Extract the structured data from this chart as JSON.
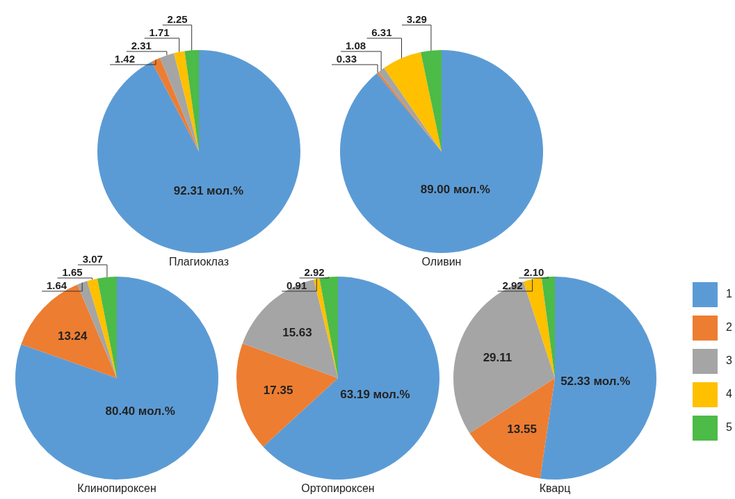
{
  "chart_data": [
    {
      "type": "pie",
      "title": "Плагиоклаз",
      "categories": [
        null,
        null,
        null,
        null,
        null
      ],
      "values": [
        92.31,
        1.42,
        2.31,
        1.71,
        2.25
      ],
      "colors": [
        "#5b9bd5",
        "#ed7d31",
        "#a5a5a5",
        "#ffc000",
        "#4cbb47"
      ],
      "value_labels": [
        "92.31 мол.%",
        "1.42",
        "2.31",
        "1.71",
        "2.25"
      ]
    },
    {
      "type": "pie",
      "title": "Оливин",
      "categories": [
        null,
        null,
        null,
        null,
        null
      ],
      "values": [
        89.0,
        0.33,
        1.08,
        6.31,
        3.29
      ],
      "colors": [
        "#5b9bd5",
        "#ed7d31",
        "#a5a5a5",
        "#ffc000",
        "#4cbb47"
      ],
      "value_labels": [
        "89.00 мол.%",
        "0.33",
        "1.08",
        "6.31",
        "3.29"
      ]
    },
    {
      "type": "pie",
      "title": "Клинопироксен",
      "categories": [
        null,
        null,
        null,
        null,
        null
      ],
      "values": [
        80.4,
        13.24,
        1.64,
        1.65,
        3.07
      ],
      "colors": [
        "#5b9bd5",
        "#ed7d31",
        "#a5a5a5",
        "#ffc000",
        "#4cbb47"
      ],
      "value_labels": [
        "80.40 мол.%",
        "13.24",
        "1.64",
        "1.65",
        "3.07"
      ]
    },
    {
      "type": "pie",
      "title": "Ортопироксен",
      "categories": [
        null,
        null,
        null,
        null,
        null
      ],
      "values": [
        63.19,
        17.35,
        15.63,
        0.91,
        2.92
      ],
      "colors": [
        "#5b9bd5",
        "#ed7d31",
        "#a5a5a5",
        "#ffc000",
        "#4cbb47"
      ],
      "value_labels": [
        "63.19 мол.%",
        "17.35",
        "15.63",
        "0.91",
        "2.92"
      ]
    },
    {
      "type": "pie",
      "title": "Кварц",
      "categories": [
        "1",
        "2",
        "3",
        "4",
        "5"
      ],
      "values": [
        52.33,
        13.55,
        29.11,
        2.92,
        2.1
      ],
      "colors": [
        "#5b9bd5",
        "#ed7d31",
        "#a5a5a5",
        "#ffc000",
        "#4cbb47"
      ],
      "value_labels": [
        "52.33 мол.%",
        "13.55",
        "29.11",
        "2.92",
        "2.10"
      ],
      "legend": "right"
    }
  ]
}
